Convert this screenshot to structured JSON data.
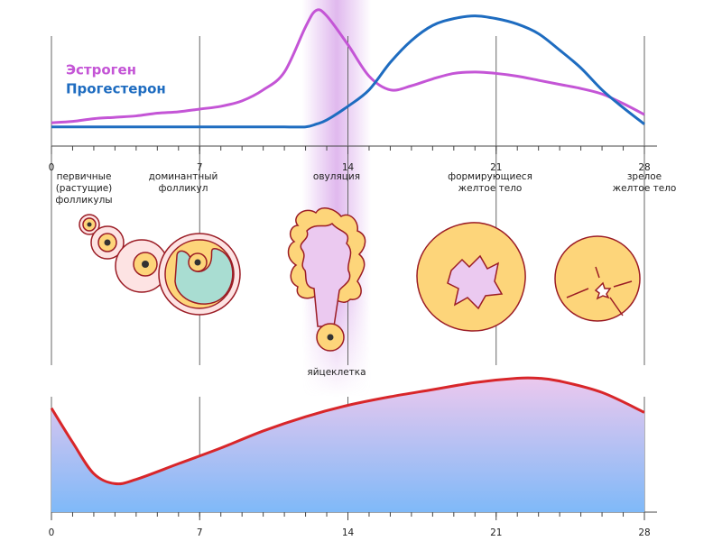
{
  "chart_data": [
    {
      "type": "line",
      "x": [
        0,
        1,
        2,
        3,
        4,
        5,
        6,
        7,
        8,
        9,
        10,
        11,
        12,
        12.5,
        13,
        14,
        15,
        16,
        17,
        18,
        19,
        20,
        21,
        22,
        23,
        24,
        25,
        26,
        27,
        28
      ],
      "series": [
        {
          "name": "Эстроген",
          "color": "#c455d6",
          "values": [
            17,
            18,
            20,
            21,
            22,
            24,
            25,
            27,
            29,
            33,
            41,
            54,
            87,
            99,
            95,
            74,
            51,
            41,
            44,
            49,
            53,
            54,
            53,
            51,
            48,
            45,
            42,
            38,
            31,
            23
          ]
        },
        {
          "name": "Прогестерон",
          "color": "#1e6cc0",
          "values": [
            14,
            14,
            14,
            14,
            14,
            14,
            14,
            14,
            14,
            14,
            14,
            14,
            14,
            16,
            19,
            29,
            41,
            61,
            77,
            88,
            93,
            95,
            93,
            89,
            82,
            70,
            57,
            41,
            28,
            16
          ]
        }
      ],
      "xlim": [
        0,
        28
      ],
      "xticks": [
        0,
        7,
        14,
        21,
        28
      ],
      "minor_xticks": [
        0,
        1,
        2,
        3,
        4,
        5,
        6,
        7,
        8,
        9,
        10,
        11,
        12,
        13,
        14,
        15,
        16,
        17,
        18,
        19,
        20,
        21,
        22,
        23,
        24,
        25,
        26,
        27,
        28
      ],
      "ylim": [
        0,
        100
      ],
      "grid": true
    },
    {
      "type": "area",
      "x": [
        0,
        1,
        2,
        3,
        4,
        6,
        8,
        10,
        12,
        14,
        16,
        18,
        20,
        22,
        23,
        24,
        26,
        28
      ],
      "values": [
        73,
        49,
        27,
        20,
        23,
        34,
        45,
        57,
        67,
        75,
        81,
        86,
        91,
        94,
        94,
        92,
        84,
        70
      ],
      "color": "#d8262a",
      "xlim": [
        0,
        28
      ],
      "xticks": [
        0,
        7,
        14,
        21,
        28
      ],
      "minor_xticks": [
        0,
        1,
        2,
        3,
        4,
        5,
        6,
        7,
        8,
        9,
        10,
        11,
        12,
        13,
        14,
        15,
        16,
        17,
        18,
        19,
        20,
        21,
        22,
        23,
        24,
        25,
        26,
        27,
        28
      ],
      "ylim": [
        0,
        100
      ],
      "grid": true
    }
  ],
  "stages": [
    {
      "lines": [
        "первичные",
        "(растущие)",
        "фолликулы"
      ]
    },
    {
      "lines": [
        "доминантный",
        "фолликул"
      ]
    },
    {
      "lines": [
        "овуляция"
      ]
    },
    {
      "lines": [
        "формирующиеся",
        "желтое тело"
      ]
    },
    {
      "lines": [
        "зрелое",
        "желтое тело"
      ]
    }
  ],
  "egg": "яйцеклетка"
}
